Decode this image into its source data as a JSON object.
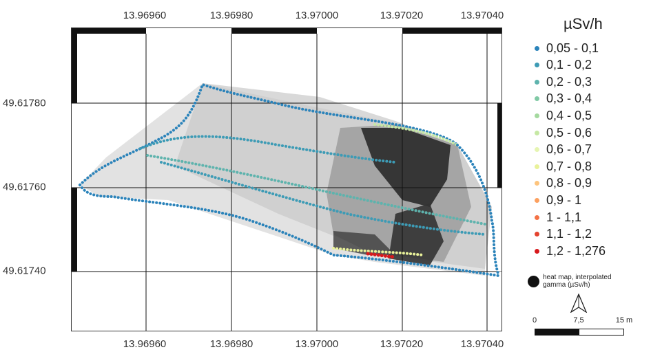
{
  "axes": {
    "top_ticks": [
      "13.96960",
      "13.96980",
      "13.97000",
      "13.97020",
      "13.97040"
    ],
    "bottom_ticks": [
      "13.96960",
      "13.96980",
      "13.97000",
      "13.97020",
      "13.97040"
    ],
    "left_ticks": [
      "49.61780",
      "49.61760",
      "49.61740"
    ]
  },
  "legend": {
    "title": "µSv/h",
    "items": [
      {
        "label": "0,05 - 0,1",
        "color": "#2b83ba"
      },
      {
        "label": "0,1 - 0,2",
        "color": "#3d9bb5"
      },
      {
        "label": "0,2 - 0,3",
        "color": "#5eb3ad"
      },
      {
        "label": "0,3 - 0,4",
        "color": "#80c9a5"
      },
      {
        "label": "0,4 - 0,5",
        "color": "#a4d99f"
      },
      {
        "label": "0,5 - 0,6",
        "color": "#c6e8a4"
      },
      {
        "label": "0,6 - 0,7",
        "color": "#e6f5b2"
      },
      {
        "label": "0,7 - 0,8",
        "color": "#e9f29a"
      },
      {
        "label": "0,8 - 0,9",
        "color": "#fdc47d"
      },
      {
        "label": "0,9 - 1",
        "color": "#fca05f"
      },
      {
        "label": "1 - 1,1",
        "color": "#f47245"
      },
      {
        "label": "1,1 - 1,2",
        "color": "#e4432f"
      },
      {
        "label": "1,2 - 1,276",
        "color": "#d7191c"
      }
    ],
    "heat_label": "heat map, interpolated gamma (µSv/h)"
  },
  "scale_bar": {
    "labels": [
      "0",
      "7,5",
      "15 m"
    ]
  },
  "icons": {
    "north_arrow": "north-arrow-icon"
  }
}
